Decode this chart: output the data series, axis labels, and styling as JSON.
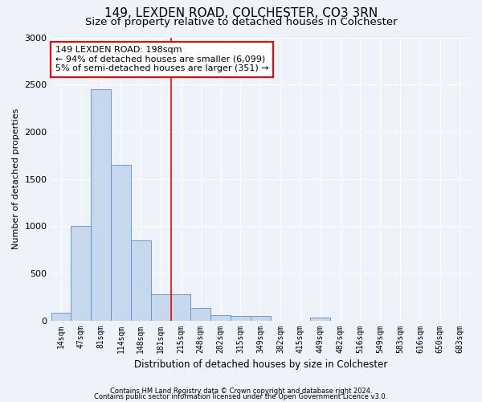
{
  "title1": "149, LEXDEN ROAD, COLCHESTER, CO3 3RN",
  "title2": "Size of property relative to detached houses in Colchester",
  "xlabel": "Distribution of detached houses by size in Colchester",
  "ylabel": "Number of detached properties",
  "categories": [
    "14sqm",
    "47sqm",
    "81sqm",
    "114sqm",
    "148sqm",
    "181sqm",
    "215sqm",
    "248sqm",
    "282sqm",
    "315sqm",
    "349sqm",
    "382sqm",
    "415sqm",
    "449sqm",
    "482sqm",
    "516sqm",
    "549sqm",
    "583sqm",
    "616sqm",
    "650sqm",
    "683sqm"
  ],
  "values": [
    80,
    1000,
    2450,
    1650,
    850,
    275,
    275,
    130,
    60,
    50,
    50,
    0,
    0,
    30,
    0,
    0,
    0,
    0,
    0,
    0,
    0
  ],
  "bar_color": "#c5d8ee",
  "bar_edge_color": "#5b8dc8",
  "property_line_x": 5.5,
  "annotation_text": "149 LEXDEN ROAD: 198sqm\n← 94% of detached houses are smaller (6,099)\n5% of semi-detached houses are larger (351) →",
  "annotation_box_color": "white",
  "annotation_box_edge_color": "red",
  "vline_color": "red",
  "ylim": [
    0,
    3000
  ],
  "yticks": [
    0,
    500,
    1000,
    1500,
    2000,
    2500,
    3000
  ],
  "footer1": "Contains HM Land Registry data © Crown copyright and database right 2024.",
  "footer2": "Contains public sector information licensed under the Open Government Licence v3.0.",
  "background_color": "#eef2fa",
  "grid_color": "#ffffff",
  "title1_fontsize": 11,
  "title2_fontsize": 9.5,
  "annot_fontsize": 8,
  "xlabel_fontsize": 8.5,
  "ylabel_fontsize": 8,
  "footer_fontsize": 6,
  "tick_fontsize": 7
}
